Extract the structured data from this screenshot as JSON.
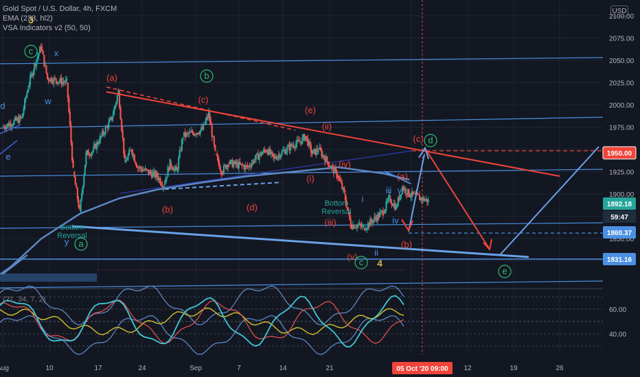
{
  "header": {
    "title": "Gold Spot / U.S. Dollar, 4h, FXCM",
    "indicator_1": "EMA (233, hl2)",
    "indicator_2": "VSA Indicators v2 (50, 50)",
    "currency": "USD"
  },
  "colors": {
    "background": "#131722",
    "grid": "#1f2433",
    "up_candle": "#26a69a",
    "down_candle": "#ef5350",
    "wave_red": "#f0453a",
    "wave_blue": "#4a90e2",
    "ema": "#5e88c4",
    "green_label": "#2fbf71",
    "yellow_label": "#d4b84a",
    "rsi_line": "#40c8d8",
    "rsi_signal": "#ef5350",
    "rsi_slow": "#c8b830",
    "rsi_band": "#5e88c4"
  },
  "chart_data": [
    {
      "type": "candlestick",
      "symbol": "Gold Spot / U.S. Dollar",
      "timeframe": "4h",
      "ylim": [
        1800,
        2110
      ],
      "y_ticks": [
        2100,
        2075,
        2050,
        2025,
        2000,
        1975,
        1950,
        1925,
        1900,
        1875,
        1850,
        1825
      ],
      "y_tick_labels": [
        "2100.00",
        "2075.00",
        "2050.00",
        "2025.00",
        "2000.00",
        "1975.00",
        "1950.00",
        "1925.00",
        "1900.00",
        "1875.00",
        "1850.00",
        "1825.00"
      ],
      "x_tick_labels": [
        "Aug",
        "10",
        "17",
        "24",
        "Sep",
        "7",
        "14",
        "21",
        "5 Oct '20",
        "12",
        "19",
        "26"
      ],
      "price_badges": [
        {
          "value": "1950.00",
          "kind": "red-level"
        },
        {
          "value": "1892.18",
          "kind": "last-price"
        },
        {
          "value": "59:47",
          "kind": "countdown"
        },
        {
          "value": "1860.37",
          "kind": "level"
        },
        {
          "value": "1831.16",
          "kind": "level"
        }
      ],
      "time_badge": "05 Oct '20  09:00",
      "price_path": [
        [
          "2020-07-31",
          1975
        ],
        [
          "2020-08-03",
          1985
        ],
        [
          "2020-08-04",
          2020
        ],
        [
          "2020-08-05",
          2045
        ],
        [
          "2020-08-06",
          2065
        ],
        [
          "2020-08-07",
          2030
        ],
        [
          "2020-08-10",
          2025
        ],
        [
          "2020-08-11",
          1925
        ],
        [
          "2020-08-12",
          1880
        ],
        [
          "2020-08-13",
          1945
        ],
        [
          "2020-08-14",
          1948
        ],
        [
          "2020-08-17",
          1985
        ],
        [
          "2020-08-18",
          2015
        ],
        [
          "2020-08-19",
          1935
        ],
        [
          "2020-08-20",
          1950
        ],
        [
          "2020-08-21",
          1930
        ],
        [
          "2020-08-24",
          1920
        ],
        [
          "2020-08-25",
          1910
        ],
        [
          "2020-08-26",
          1935
        ],
        [
          "2020-08-27",
          1925
        ],
        [
          "2020-08-28",
          1965
        ],
        [
          "2020-08-31",
          1972
        ],
        [
          "2020-09-01",
          1990
        ],
        [
          "2020-09-02",
          1945
        ],
        [
          "2020-09-03",
          1925
        ],
        [
          "2020-09-04",
          1935
        ],
        [
          "2020-09-07",
          1930
        ],
        [
          "2020-09-08",
          1938
        ],
        [
          "2020-09-09",
          1945
        ],
        [
          "2020-09-10",
          1950
        ],
        [
          "2020-09-11",
          1940
        ],
        [
          "2020-09-14",
          1955
        ],
        [
          "2020-09-15",
          1958
        ],
        [
          "2020-09-16",
          1965
        ],
        [
          "2020-09-17",
          1945
        ],
        [
          "2020-09-18",
          1950
        ],
        [
          "2020-09-21",
          1920
        ],
        [
          "2020-09-22",
          1900
        ],
        [
          "2020-09-23",
          1865
        ],
        [
          "2020-09-24",
          1865
        ],
        [
          "2020-09-25",
          1862
        ],
        [
          "2020-09-28",
          1880
        ],
        [
          "2020-09-29",
          1895
        ],
        [
          "2020-09-30",
          1885
        ],
        [
          "2020-10-01",
          1908
        ],
        [
          "2020-10-02",
          1900
        ],
        [
          "2020-10-05",
          1892.18
        ]
      ],
      "ema_233": [
        [
          "2020-07-31",
          1810
        ],
        [
          "2020-08-06",
          1850
        ],
        [
          "2020-08-12",
          1878
        ],
        [
          "2020-08-18",
          1895
        ],
        [
          "2020-08-24",
          1905
        ],
        [
          "2020-08-31",
          1913
        ],
        [
          "2020-09-07",
          1920
        ],
        [
          "2020-09-14",
          1925
        ],
        [
          "2020-09-21",
          1930
        ],
        [
          "2020-09-28",
          1923
        ],
        [
          "2020-10-02",
          1916
        ]
      ],
      "wave_labels": [
        {
          "text": "3",
          "group": "yellow"
        },
        {
          "text": "c",
          "group": "green-circle"
        },
        {
          "text": "x",
          "group": "blue"
        },
        {
          "text": "w",
          "group": "blue"
        },
        {
          "text": "(a)",
          "group": "red"
        },
        {
          "text": "b",
          "group": "green-circle"
        },
        {
          "text": "(c)",
          "group": "red"
        },
        {
          "text": "(e)",
          "group": "red"
        },
        {
          "text": "(ii)",
          "group": "red"
        },
        {
          "text": "(c)",
          "group": "red"
        },
        {
          "text": "d",
          "group": "green-circle"
        },
        {
          "text": "(iv)",
          "group": "red"
        },
        {
          "text": "(i)",
          "group": "red"
        },
        {
          "text": "(a)",
          "group": "red"
        },
        {
          "text": "iii",
          "group": "blue"
        },
        {
          "text": "v",
          "group": "blue"
        },
        {
          "text": "i",
          "group": "blue"
        },
        {
          "text": "iv",
          "group": "blue"
        },
        {
          "text": "(b)",
          "group": "red"
        },
        {
          "text": "(d)",
          "group": "red"
        },
        {
          "text": "(iii)",
          "group": "red"
        },
        {
          "text": "ii",
          "group": "blue"
        },
        {
          "text": "(b)",
          "group": "red"
        },
        {
          "text": "(v)",
          "group": "red"
        },
        {
          "text": "c",
          "group": "green-circle"
        },
        {
          "text": "4",
          "group": "yellow"
        },
        {
          "text": "e",
          "group": "green-circle"
        },
        {
          "text": "y",
          "group": "blue"
        },
        {
          "text": "a",
          "group": "green-circle"
        },
        {
          "text": "d",
          "group": "blue"
        },
        {
          "text": "e",
          "group": "blue"
        }
      ],
      "annotations": [
        "Bottom Reversal",
        "Bottom Reversal"
      ]
    },
    {
      "type": "line",
      "name": "oscillator panel",
      "ylim": [
        20,
        80
      ],
      "y_ticks": [
        60,
        40
      ],
      "y_tick_labels": [
        "60.00",
        "40.00"
      ],
      "panel_label": "(21, 34, 7, 2)"
    }
  ]
}
